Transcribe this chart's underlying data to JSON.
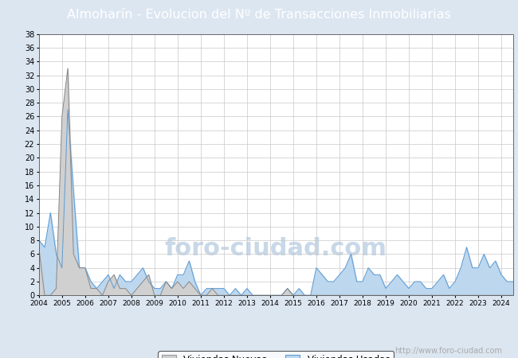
{
  "title": "Almoharín - Evolucion del Nº de Transacciones Inmobiliarias",
  "title_bg_color": "#4169b0",
  "title_font_color": "#ffffff",
  "plot_bg_color": "#ffffff",
  "fig_bg_color": "#dce6f1",
  "ylim": [
    0,
    38
  ],
  "yticks": [
    0,
    2,
    4,
    6,
    8,
    10,
    12,
    14,
    16,
    18,
    20,
    22,
    24,
    26,
    28,
    30,
    32,
    34,
    36,
    38
  ],
  "year_labels": [
    2004,
    2005,
    2006,
    2007,
    2008,
    2009,
    2010,
    2011,
    2012,
    2013,
    2014,
    2015,
    2016,
    2017,
    2018,
    2019,
    2020,
    2021,
    2022,
    2023,
    2024
  ],
  "nuevas_color": "#888888",
  "nuevas_fill": "#d0d0d0",
  "usadas_color": "#5b9bd5",
  "usadas_fill": "#bdd7ee",
  "grid_color": "#c8c8c8",
  "watermark": "http://www.foro-ciudad.com",
  "watermark_color": "#aaaaaa",
  "foro_watermark": "foro-ciudad.com",
  "foro_watermark_color": "#c8d8e8",
  "nuevas": [
    7,
    0,
    0,
    1,
    26,
    33,
    6,
    4,
    4,
    1,
    1,
    0,
    2,
    3,
    1,
    1,
    0,
    1,
    2,
    3,
    0,
    0,
    2,
    1,
    2,
    1,
    2,
    1,
    0,
    0,
    1,
    0,
    0,
    0,
    0,
    0,
    0,
    0,
    0,
    0,
    0,
    0,
    0,
    1,
    0,
    0,
    0,
    0,
    0,
    0,
    0,
    0,
    0,
    0,
    0,
    0,
    0,
    0,
    0,
    0,
    0,
    0,
    0,
    0,
    0,
    0,
    0,
    0,
    0,
    0,
    0,
    0,
    0,
    0,
    0,
    0,
    0,
    0,
    0,
    0,
    0,
    0,
    0
  ],
  "usadas": [
    8,
    7,
    12,
    6,
    4,
    27,
    15,
    4,
    4,
    2,
    1,
    2,
    3,
    1,
    3,
    2,
    2,
    3,
    4,
    2,
    1,
    1,
    2,
    1,
    3,
    3,
    5,
    2,
    0,
    1,
    1,
    1,
    1,
    0,
    1,
    0,
    1,
    0,
    0,
    0,
    0,
    0,
    0,
    1,
    0,
    1,
    0,
    0,
    4,
    3,
    2,
    2,
    3,
    4,
    6,
    2,
    2,
    4,
    3,
    3,
    1,
    2,
    3,
    2,
    1,
    2,
    2,
    1,
    1,
    2,
    3,
    1,
    2,
    4,
    7,
    4,
    4,
    6,
    4,
    5,
    3,
    2,
    2
  ]
}
